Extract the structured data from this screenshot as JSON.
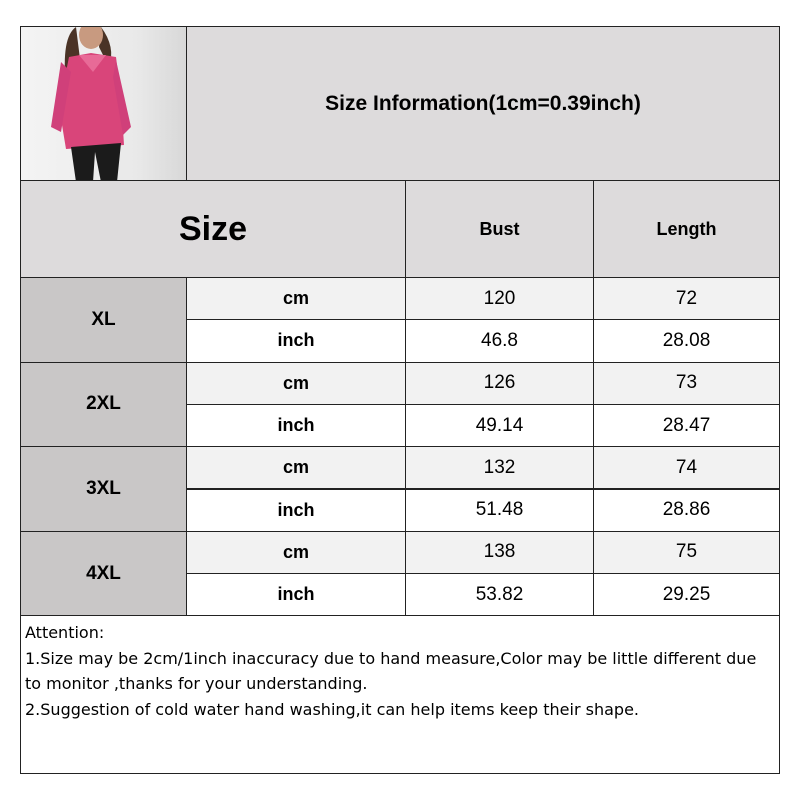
{
  "title": "Size Information(1cm=0.39inch)",
  "header": {
    "size": "Size",
    "columns": [
      "Bust",
      "Length"
    ]
  },
  "units": {
    "cm": "cm",
    "inch": "inch"
  },
  "rows": [
    {
      "size": "XL",
      "cm": [
        "120",
        "72"
      ],
      "inch": [
        "46.8",
        "28.08"
      ]
    },
    {
      "size": "2XL",
      "cm": [
        "126",
        "73"
      ],
      "inch": [
        "49.14",
        "28.47"
      ]
    },
    {
      "size": "3XL",
      "cm": [
        "132",
        "74"
      ],
      "inch": [
        "51.48",
        "28.86"
      ]
    },
    {
      "size": "4XL",
      "cm": [
        "138",
        "75"
      ],
      "inch": [
        "53.82",
        "29.25"
      ]
    }
  ],
  "notes": {
    "heading": "Attention:",
    "lines": [
      "1.Size may be 2cm/1inch inaccuracy due to hand measure,Color may be little different due to monitor ,thanks for your understanding.",
      "2.Suggestion of cold water hand washing,it can help items keep their shape."
    ]
  },
  "colors": {
    "header": "#dddbdc",
    "size_column": "#c9c7c7",
    "cm_row": "#f2f2f2",
    "product": "#d9457a"
  }
}
